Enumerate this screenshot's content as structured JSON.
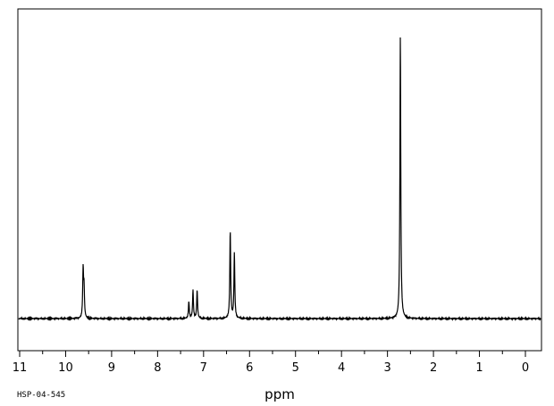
{
  "chart_data": {
    "type": "line",
    "title": "",
    "xlabel": "ppm",
    "ylabel": "",
    "sample_code": "HSP-04-545",
    "x_reversed": true,
    "xlim": [
      11,
      0
    ],
    "ylim": [
      0,
      1
    ],
    "x_ticks": [
      11,
      10,
      9,
      8,
      7,
      6,
      5,
      4,
      3,
      2,
      1,
      0
    ],
    "x_tick_labels": [
      "11",
      "10",
      "9",
      "8",
      "7",
      "6",
      "5",
      "4",
      "3",
      "2",
      "1",
      "0"
    ],
    "grid": false,
    "legend": "none",
    "line_color": "#000000",
    "baseline": 0,
    "peaks": [
      {
        "ppm": 9.62,
        "height": 0.17
      },
      {
        "ppm": 9.6,
        "height": 0.1
      },
      {
        "ppm": 7.32,
        "height": 0.06
      },
      {
        "ppm": 7.23,
        "height": 0.1
      },
      {
        "ppm": 7.14,
        "height": 0.1
      },
      {
        "ppm": 6.42,
        "height": 0.31
      },
      {
        "ppm": 6.33,
        "height": 0.23
      },
      {
        "ppm": 2.72,
        "height": 1.0
      }
    ]
  }
}
